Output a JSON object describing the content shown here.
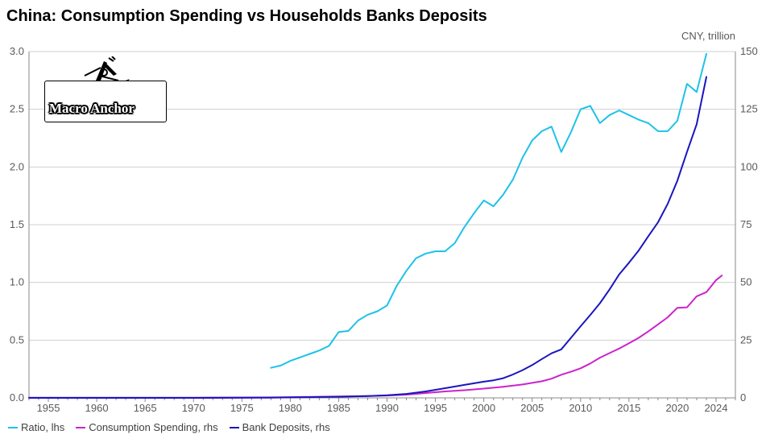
{
  "chart_data": {
    "type": "line",
    "title": "China: Consumption Spending vs Households Banks Deposits",
    "unit_label_right": "CNY, trillion",
    "x_range": [
      1953,
      2026
    ],
    "x_ticks": [
      1955,
      1960,
      1965,
      1970,
      1975,
      1980,
      1985,
      1990,
      1995,
      2000,
      2005,
      2010,
      2015,
      2020,
      2024
    ],
    "y_left": {
      "range": [
        0,
        3.0
      ],
      "ticks": [
        "0.0",
        "0.5",
        "1.0",
        "1.5",
        "2.0",
        "2.5",
        "3.0"
      ],
      "label": "Ratio"
    },
    "y_right": {
      "range": [
        0,
        150
      ],
      "ticks": [
        "0",
        "25",
        "50",
        "75",
        "100",
        "125",
        "150"
      ],
      "label": "CNY, trillion"
    },
    "grid": true,
    "legend_position": "bottom-left",
    "series": [
      {
        "name": "Ratio, lhs",
        "axis": "left",
        "color": "#1EC2E8",
        "points": [
          [
            1978,
            0.26
          ],
          [
            1979,
            0.28
          ],
          [
            1980,
            0.32
          ],
          [
            1981,
            0.35
          ],
          [
            1982,
            0.38
          ],
          [
            1983,
            0.41
          ],
          [
            1984,
            0.45
          ],
          [
            1985,
            0.57
          ],
          [
            1986,
            0.58
          ],
          [
            1987,
            0.67
          ],
          [
            1988,
            0.72
          ],
          [
            1989,
            0.75
          ],
          [
            1990,
            0.8
          ],
          [
            1991,
            0.97
          ],
          [
            1992,
            1.1
          ],
          [
            1993,
            1.21
          ],
          [
            1994,
            1.25
          ],
          [
            1995,
            1.27
          ],
          [
            1996,
            1.27
          ],
          [
            1997,
            1.34
          ],
          [
            1998,
            1.48
          ],
          [
            1999,
            1.6
          ],
          [
            2000,
            1.71
          ],
          [
            2001,
            1.66
          ],
          [
            2002,
            1.76
          ],
          [
            2003,
            1.89
          ],
          [
            2004,
            2.08
          ],
          [
            2005,
            2.23
          ],
          [
            2006,
            2.31
          ],
          [
            2007,
            2.35
          ],
          [
            2008,
            2.13
          ],
          [
            2009,
            2.3
          ],
          [
            2010,
            2.5
          ],
          [
            2011,
            2.53
          ],
          [
            2012,
            2.38
          ],
          [
            2013,
            2.45
          ],
          [
            2014,
            2.49
          ],
          [
            2015,
            2.45
          ],
          [
            2016,
            2.41
          ],
          [
            2017,
            2.38
          ],
          [
            2018,
            2.31
          ],
          [
            2019,
            2.31
          ],
          [
            2020,
            2.4
          ],
          [
            2021,
            2.72
          ],
          [
            2022,
            2.65
          ],
          [
            2023,
            2.98
          ]
        ]
      },
      {
        "name": "Consumption Spending, rhs",
        "axis": "right",
        "color": "#CC22CC",
        "points": [
          [
            1953,
            0.1
          ],
          [
            1960,
            0.1
          ],
          [
            1970,
            0.1
          ],
          [
            1978,
            0.2
          ],
          [
            1980,
            0.3
          ],
          [
            1985,
            0.6
          ],
          [
            1988,
            0.8
          ],
          [
            1990,
            1.0
          ],
          [
            1992,
            1.4
          ],
          [
            1994,
            2.1
          ],
          [
            1996,
            2.8
          ],
          [
            1998,
            3.3
          ],
          [
            2000,
            4.0
          ],
          [
            2002,
            4.8
          ],
          [
            2004,
            5.8
          ],
          [
            2006,
            7.2
          ],
          [
            2007,
            8.3
          ],
          [
            2008,
            10.0
          ],
          [
            2009,
            11.3
          ],
          [
            2010,
            12.8
          ],
          [
            2011,
            14.9
          ],
          [
            2012,
            17.4
          ],
          [
            2013,
            19.4
          ],
          [
            2014,
            21.4
          ],
          [
            2015,
            23.6
          ],
          [
            2016,
            26.0
          ],
          [
            2017,
            28.8
          ],
          [
            2018,
            31.8
          ],
          [
            2019,
            34.9
          ],
          [
            2020,
            39.0
          ],
          [
            2021,
            39.2
          ],
          [
            2022,
            44.0
          ],
          [
            2023,
            45.8
          ],
          [
            2024,
            51.0
          ],
          [
            2024.6,
            53.0
          ]
        ]
      },
      {
        "name": "Bank Deposits, rhs",
        "axis": "right",
        "color": "#1A16BE",
        "points": [
          [
            1953,
            0.0
          ],
          [
            1960,
            0.0
          ],
          [
            1970,
            0.0
          ],
          [
            1978,
            0.1
          ],
          [
            1980,
            0.2
          ],
          [
            1985,
            0.5
          ],
          [
            1988,
            0.8
          ],
          [
            1990,
            1.1
          ],
          [
            1992,
            1.7
          ],
          [
            1994,
            2.8
          ],
          [
            1996,
            4.2
          ],
          [
            1998,
            5.6
          ],
          [
            2000,
            7.0
          ],
          [
            2001,
            7.6
          ],
          [
            2002,
            8.5
          ],
          [
            2003,
            10.1
          ],
          [
            2004,
            12.0
          ],
          [
            2005,
            14.2
          ],
          [
            2006,
            16.8
          ],
          [
            2007,
            19.3
          ],
          [
            2008,
            21.0
          ],
          [
            2009,
            26.0
          ],
          [
            2010,
            31.0
          ],
          [
            2011,
            35.9
          ],
          [
            2012,
            41.0
          ],
          [
            2013,
            47.0
          ],
          [
            2014,
            53.5
          ],
          [
            2015,
            58.5
          ],
          [
            2016,
            63.8
          ],
          [
            2017,
            70.0
          ],
          [
            2018,
            76.0
          ],
          [
            2019,
            84.0
          ],
          [
            2020,
            94.0
          ],
          [
            2021,
            106.5
          ],
          [
            2022,
            118.5
          ],
          [
            2023,
            139.0
          ]
        ]
      }
    ]
  },
  "logo": {
    "text": "Macro Anchor"
  },
  "legend": [
    {
      "label": "Ratio, lhs",
      "color": "#1EC2E8"
    },
    {
      "label": "Consumption Spending, rhs",
      "color": "#CC22CC"
    },
    {
      "label": "Bank Deposits, rhs",
      "color": "#1A16BE"
    }
  ]
}
